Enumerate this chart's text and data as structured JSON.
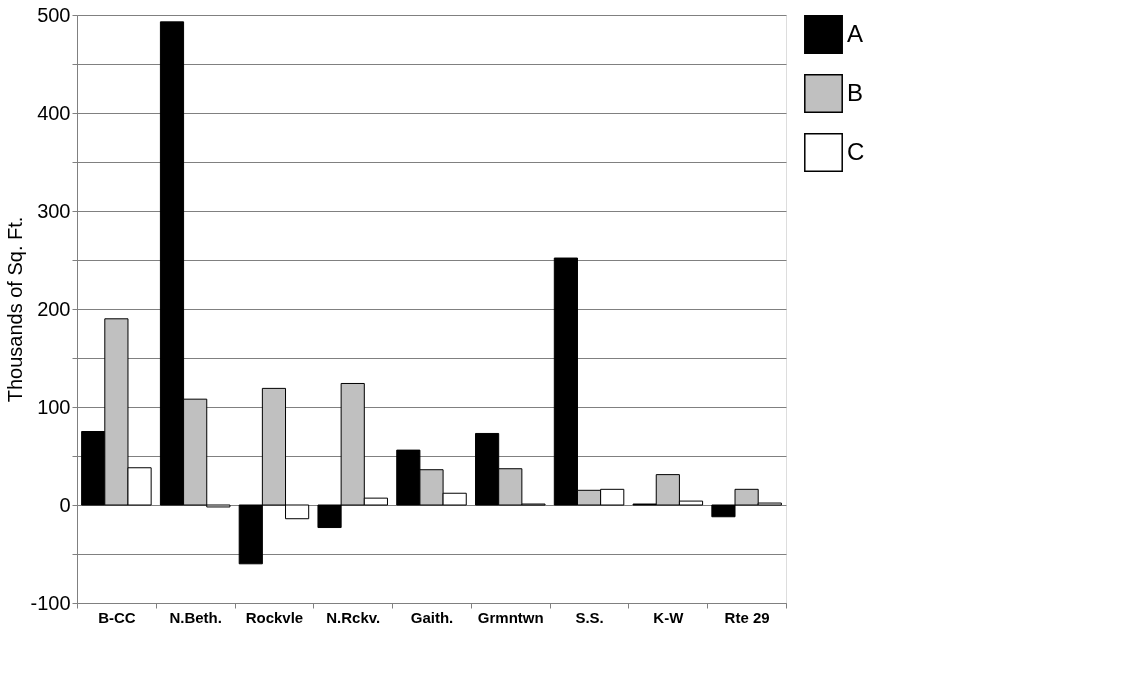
{
  "chart_data": {
    "type": "bar",
    "ylabel": "Thousands of Sq. Ft.",
    "categories": [
      "B-CC",
      "N.Beth.",
      "Rockvle",
      "N.Rckv.",
      "Gaith.",
      "Grmntwn",
      "S.S.",
      "K-W",
      "Rte 29"
    ],
    "series": [
      {
        "name": "A",
        "color": "#000000",
        "values": [
          75,
          493,
          -60,
          -23,
          56,
          73,
          252,
          1,
          -12
        ]
      },
      {
        "name": "B",
        "color": "#c0c0c0",
        "values": [
          190,
          108,
          119,
          124,
          36,
          37,
          15,
          31,
          16
        ]
      },
      {
        "name": "C",
        "color": "#ffffff",
        "values": [
          38,
          -2,
          -14,
          7,
          12,
          1,
          16,
          4,
          2
        ]
      }
    ],
    "ylim": [
      -100,
      500
    ],
    "yticks": [
      -100,
      {
        "value": -50,
        "label": null
      },
      0,
      {
        "value": 50,
        "label": null
      },
      100,
      {
        "value": 150,
        "label": null
      },
      200,
      {
        "value": 250,
        "label": null
      },
      300,
      {
        "value": 350,
        "label": null
      },
      400,
      {
        "value": 450,
        "label": null
      },
      500
    ],
    "grid": "y",
    "legend": "right"
  }
}
